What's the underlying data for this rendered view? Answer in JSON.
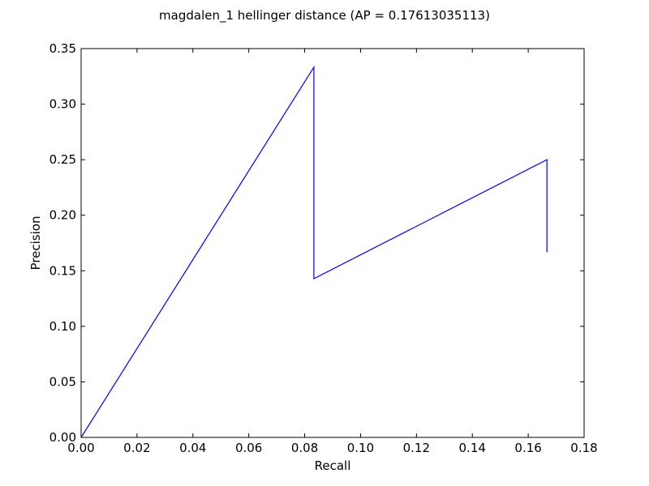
{
  "chart_data": {
    "type": "line",
    "title": "magdalen_1 hellinger distance  (AP = 0.17613035113)",
    "xlabel": "Recall",
    "ylabel": "Precision",
    "xlim": [
      0.0,
      0.18
    ],
    "ylim": [
      0.0,
      0.35
    ],
    "x_ticks": [
      "0.00",
      "0.02",
      "0.04",
      "0.06",
      "0.08",
      "0.10",
      "0.12",
      "0.14",
      "0.16",
      "0.18"
    ],
    "y_ticks": [
      "0.00",
      "0.05",
      "0.10",
      "0.15",
      "0.20",
      "0.25",
      "0.30",
      "0.35"
    ],
    "grid": false,
    "series": [
      {
        "color": "#0000ff",
        "x": [
          0.0,
          0.0833,
          0.0833,
          0.1667,
          0.1667
        ],
        "y": [
          0.0,
          0.3333,
          0.1429,
          0.25,
          0.1667
        ]
      }
    ]
  }
}
